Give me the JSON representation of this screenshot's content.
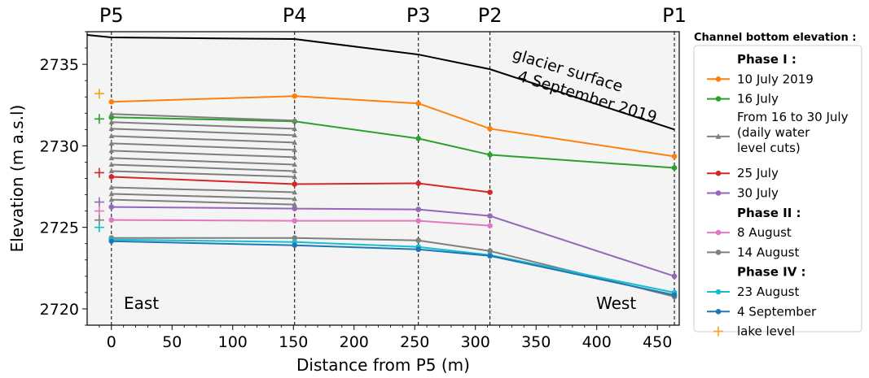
{
  "chart_data": {
    "type": "line",
    "title": "",
    "xlabel": "Distance from P5 (m)",
    "ylabel": "Elevation (m a.s.l)",
    "xlim": [
      -20,
      468
    ],
    "ylim": [
      2719,
      2737
    ],
    "x_ticks": [
      0,
      50,
      100,
      150,
      200,
      250,
      300,
      350,
      400,
      450
    ],
    "y_ticks": [
      2720,
      2725,
      2730,
      2735
    ],
    "grid": false,
    "legend_position": "right",
    "legend_title": "Channel bottom elevation :",
    "stations": [
      {
        "name": "P5",
        "x": 0
      },
      {
        "name": "P4",
        "x": 151
      },
      {
        "name": "P3",
        "x": 253
      },
      {
        "name": "P2",
        "x": 312
      },
      {
        "name": "P1",
        "x": 464
      }
    ],
    "region_labels": {
      "left": "East",
      "right": "West"
    },
    "glacier_surface": {
      "label_line1": "glacier surface",
      "label_line2": "4 September 2019",
      "color": "#000000",
      "x": [
        -20,
        0,
        151,
        253,
        312,
        464
      ],
      "y": [
        2736.8,
        2736.65,
        2736.55,
        2735.6,
        2734.7,
        2731.0
      ]
    },
    "series": [
      {
        "name": "10 July 2019",
        "color": "#ff7f0e",
        "x": [
          0,
          151,
          253,
          312,
          464
        ],
        "y": [
          2732.7,
          2733.05,
          2732.6,
          2731.05,
          2729.35
        ]
      },
      {
        "name": "16 July",
        "color": "#2ca02c",
        "x": [
          0,
          151,
          253,
          312,
          464
        ],
        "y": [
          2731.75,
          2731.5,
          2730.45,
          2729.45,
          2728.65
        ]
      },
      {
        "name": "From 16 to 30 July (daily water level cuts)",
        "color": "#7f7f7f",
        "marker": "triangle",
        "cuts": [
          {
            "x": [
              0,
              151
            ],
            "y": [
              2731.95,
              2731.55
            ]
          },
          {
            "x": [
              0,
              151
            ],
            "y": [
              2731.45,
              2731.05
            ]
          },
          {
            "x": [
              0,
              151
            ],
            "y": [
              2731.05,
              2730.65
            ]
          },
          {
            "x": [
              0,
              151
            ],
            "y": [
              2730.6,
              2730.2
            ]
          },
          {
            "x": [
              0,
              151
            ],
            "y": [
              2730.15,
              2729.75
            ]
          },
          {
            "x": [
              0,
              151
            ],
            "y": [
              2729.7,
              2729.3
            ]
          },
          {
            "x": [
              0,
              151
            ],
            "y": [
              2729.25,
              2728.85
            ]
          },
          {
            "x": [
              0,
              151
            ],
            "y": [
              2728.85,
              2728.45
            ]
          },
          {
            "x": [
              0,
              151
            ],
            "y": [
              2728.45,
              2728.1
            ]
          },
          {
            "x": [
              0,
              151
            ],
            "y": [
              2727.45,
              2727.15
            ]
          },
          {
            "x": [
              0,
              151
            ],
            "y": [
              2727.05,
              2726.75
            ]
          },
          {
            "x": [
              0,
              151
            ],
            "y": [
              2726.7,
              2726.4
            ]
          }
        ]
      },
      {
        "name": "25 July",
        "color": "#d62728",
        "x": [
          0,
          151,
          253,
          312
        ],
        "y": [
          2728.1,
          2727.65,
          2727.7,
          2727.15
        ]
      },
      {
        "name": "30 July",
        "color": "#9467bd",
        "x": [
          0,
          151,
          253,
          312,
          464
        ],
        "y": [
          2726.25,
          2726.15,
          2726.1,
          2725.7,
          2722.0
        ]
      },
      {
        "name": "8 August",
        "color": "#e377c2",
        "x": [
          0,
          151,
          253,
          312
        ],
        "y": [
          2725.45,
          2725.4,
          2725.4,
          2725.1
        ]
      },
      {
        "name": "14 August",
        "color": "#7f7f7f",
        "x": [
          0,
          151,
          253,
          312,
          464
        ],
        "y": [
          2724.35,
          2724.35,
          2724.2,
          2723.55,
          2720.75
        ]
      },
      {
        "name": "23 August",
        "color": "#17becf",
        "x": [
          0,
          151,
          253,
          312,
          464
        ],
        "y": [
          2724.25,
          2724.1,
          2723.8,
          2723.3,
          2721.0
        ]
      },
      {
        "name": "4 September",
        "color": "#1f77b4",
        "x": [
          0,
          151,
          253,
          312,
          464
        ],
        "y": [
          2724.15,
          2723.9,
          2723.65,
          2723.25,
          2720.85
        ]
      }
    ],
    "lake_level": {
      "name": "lake level",
      "x": -10,
      "points": [
        {
          "y": 2733.2,
          "color": "#ff9f1c"
        },
        {
          "y": 2731.65,
          "color": "#2ca02c"
        },
        {
          "y": 2728.35,
          "color": "#d62728"
        },
        {
          "y": 2726.55,
          "color": "#9467bd"
        },
        {
          "y": 2726.0,
          "color": "#e377c2"
        },
        {
          "y": 2725.45,
          "color": "#7f7f7f"
        },
        {
          "y": 2725.0,
          "color": "#17becf"
        }
      ],
      "legend_color": "#ff9f1c"
    },
    "legend": [
      {
        "type": "header",
        "text": "Phase I :"
      },
      {
        "type": "line",
        "series": 0,
        "text": "10 July 2019"
      },
      {
        "type": "line",
        "series": 1,
        "text": "16 July"
      },
      {
        "type": "tri",
        "series": 2,
        "lines": [
          "From 16 to 30 July",
          "(daily water",
          "level cuts)"
        ]
      },
      {
        "type": "line",
        "series": 3,
        "text": "25 July"
      },
      {
        "type": "line",
        "series": 4,
        "text": "30 July"
      },
      {
        "type": "header",
        "text": "Phase II :"
      },
      {
        "type": "line",
        "series": 5,
        "text": "8 August"
      },
      {
        "type": "line",
        "series": 6,
        "text": "14 August"
      },
      {
        "type": "header",
        "text": "Phase IV :"
      },
      {
        "type": "line",
        "series": 7,
        "text": "23 August"
      },
      {
        "type": "line",
        "series": 8,
        "text": "4 September"
      },
      {
        "type": "plus",
        "text": "lake level"
      }
    ]
  }
}
